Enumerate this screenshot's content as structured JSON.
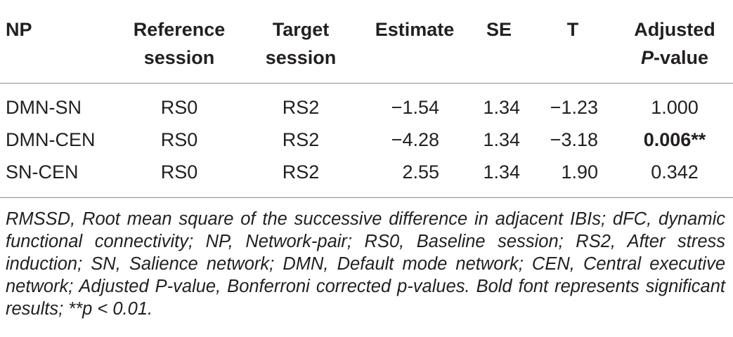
{
  "table": {
    "headers": {
      "np": "NP",
      "ref_line1": "Reference",
      "ref_line2": "session",
      "target_line1": "Target",
      "target_line2": "session",
      "estimate": "Estimate",
      "se": "SE",
      "t": "T",
      "adj_line1": "Adjusted",
      "adj_p": "P",
      "adj_rest": "-value"
    },
    "rows": [
      {
        "np": "DMN-SN",
        "reference": "RS0",
        "target": "RS2",
        "estimate": "−1.54",
        "se": "1.34",
        "t": "−1.23",
        "p": "1.000",
        "significant": false
      },
      {
        "np": "DMN-CEN",
        "reference": "RS0",
        "target": "RS2",
        "estimate": "−4.28",
        "se": "1.34",
        "t": "−3.18",
        "p": "0.006**",
        "significant": true
      },
      {
        "np": "SN-CEN",
        "reference": "RS0",
        "target": "RS2",
        "estimate": "2.55",
        "se": "1.34",
        "t": "1.90",
        "p": "0.342",
        "significant": false
      }
    ]
  },
  "footnote": "RMSSD, Root mean square of the successive difference in adjacent IBIs; dFC, dynamic functional connectivity; NP, Network-pair; RS0, Baseline session; RS2, After stress induction; SN, Salience network; DMN, Default mode network; CEN, Central executive network; Adjusted P-value, Bonferroni corrected p-values. Bold font represents significant results; **p < 0.01."
}
